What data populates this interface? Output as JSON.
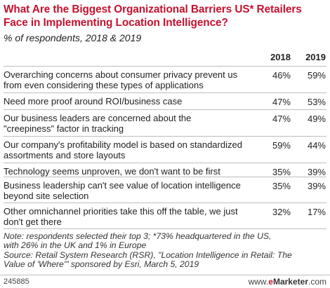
{
  "chart_data": {
    "type": "table",
    "title": "What Are the Biggest Organizational Barriers US* Retailers Face in Implementing Location Intelligence?",
    "subtitle": "% of respondents, 2018 & 2019",
    "columns": [
      "2018",
      "2019"
    ],
    "rows": [
      {
        "label": "Overarching concerns about consumer privacy prevent us from even considering these types of applications",
        "v2018": "46%",
        "v2019": "59%"
      },
      {
        "label": "Need more proof around ROI/business case",
        "v2018": "47%",
        "v2019": "53%"
      },
      {
        "label": "Our business leaders are concerned about the \"creepiness\" factor in tracking",
        "v2018": "47%",
        "v2019": "49%"
      },
      {
        "label": "Our company's profitability model is based on standardized assortments and store layouts",
        "v2018": "59%",
        "v2019": "44%"
      },
      {
        "label": "Technology seems unproven, we don't want to be first",
        "v2018": "35%",
        "v2019": "39%"
      },
      {
        "label": "Business leadership can't see value of location intelligence beyond site selection",
        "v2018": "35%",
        "v2019": "39%"
      },
      {
        "label": "Other omnichannel priorities take this off the table, we just don't get there",
        "v2018": "32%",
        "v2019": "17%"
      }
    ]
  },
  "notes": {
    "line1": "Note: respondents selected their top 3; *73% headquartered in the US,",
    "line2": "with 26% in the UK and 1% in Europe",
    "line3": "Source: Retail System Research (RSR), \"Location Intelligence in Retail: The",
    "line4": "Value of 'Where'\" sponsored by Esri, March 5, 2019"
  },
  "footer": {
    "chart_id": "245885",
    "brand_prefix": "www.",
    "brand_e": "e",
    "brand_main": "Marketer",
    "brand_suffix": ".com"
  }
}
